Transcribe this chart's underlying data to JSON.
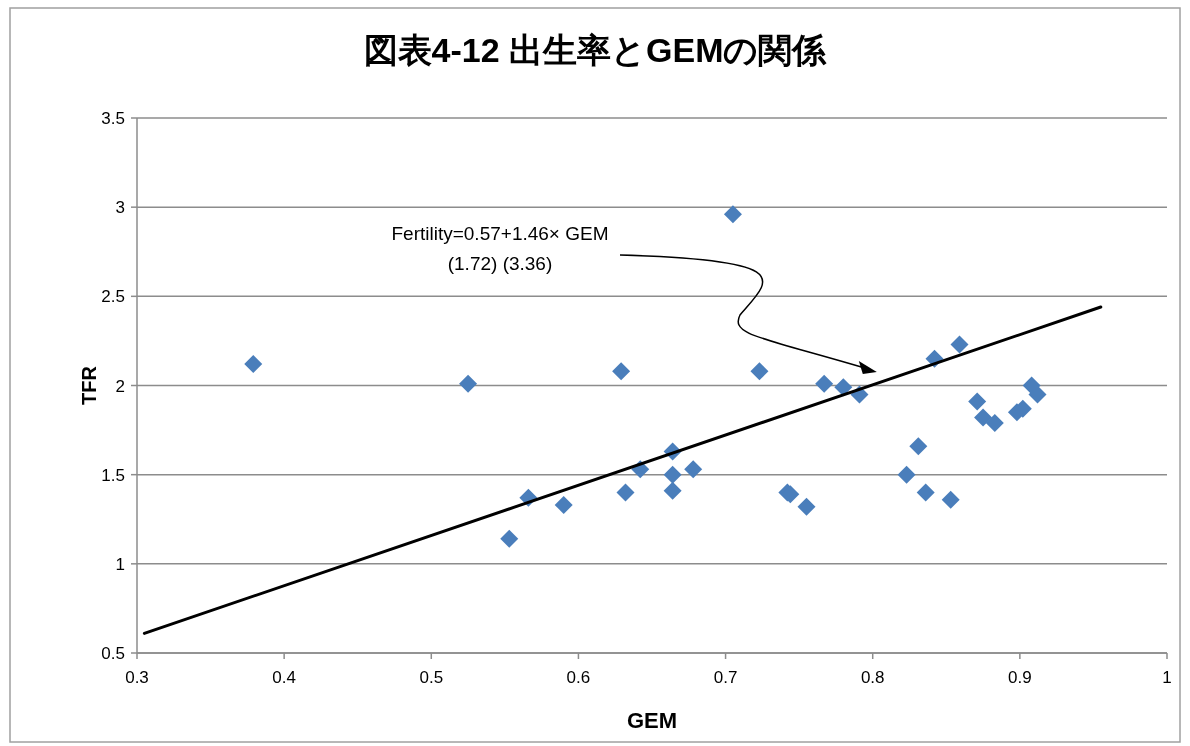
{
  "chart_data": {
    "type": "scatter",
    "title": "図表4-12  出生率とGEMの関係",
    "xlabel": "GEM",
    "ylabel": "TFR",
    "xlim": [
      0.3,
      1
    ],
    "xticks": [
      0.3,
      0.4,
      0.5,
      0.6,
      0.7,
      0.8,
      0.9,
      1
    ],
    "ylim": [
      0.5,
      3.5
    ],
    "yticks": [
      0.5,
      1,
      1.5,
      2,
      2.5,
      3,
      3.5
    ],
    "grid": "y",
    "series": [
      {
        "marker": "diamond",
        "color": "#4a7ebb",
        "x": [
          0.379,
          0.525,
          0.553,
          0.566,
          0.59,
          0.629,
          0.632,
          0.642,
          0.664,
          0.664,
          0.664,
          0.678,
          0.705,
          0.723,
          0.742,
          0.744,
          0.755,
          0.767,
          0.78,
          0.791,
          0.842,
          0.859,
          0.871,
          0.875,
          0.883,
          0.898,
          0.902,
          0.908,
          0.912,
          0.831,
          0.823,
          0.836,
          0.853
        ],
        "values": [
          2.12,
          2.01,
          1.14,
          1.37,
          1.33,
          2.08,
          1.4,
          1.53,
          1.63,
          1.5,
          1.41,
          1.53,
          2.96,
          2.08,
          1.4,
          1.39,
          1.32,
          2.01,
          1.99,
          1.95,
          2.15,
          2.23,
          1.91,
          1.82,
          1.79,
          1.85,
          1.87,
          2.0,
          1.95,
          1.66,
          1.5,
          1.4,
          1.36
        ]
      },
      {
        "type": "line",
        "color": "#000000",
        "x": [
          0.305,
          0.955
        ],
        "values": [
          0.61,
          2.44
        ]
      }
    ],
    "annotations": [
      "Fertility=0.57+1.46× GEM\n(1.72) (3.36)"
    ]
  }
}
